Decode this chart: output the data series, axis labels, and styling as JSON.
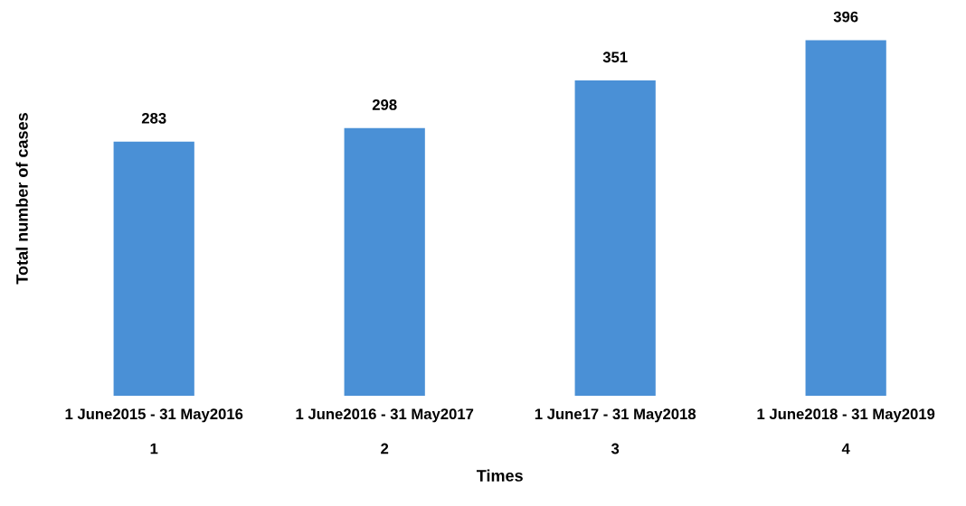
{
  "chart_data": {
    "type": "bar",
    "xlabel": "Times",
    "ylabel": "Total number of cases",
    "categories": [
      "1 June2015 - 31 May2016\n\n1",
      "1 June2016 - 31 May2017\n\n2",
      "1 June17 - 31 May2018\n\n3",
      "1 June2018 - 31 May2019\n\n4"
    ],
    "values": [
      283,
      298,
      351,
      396
    ],
    "color": "#4a90d6",
    "data_labels": true,
    "grid": false,
    "legend": false
  }
}
